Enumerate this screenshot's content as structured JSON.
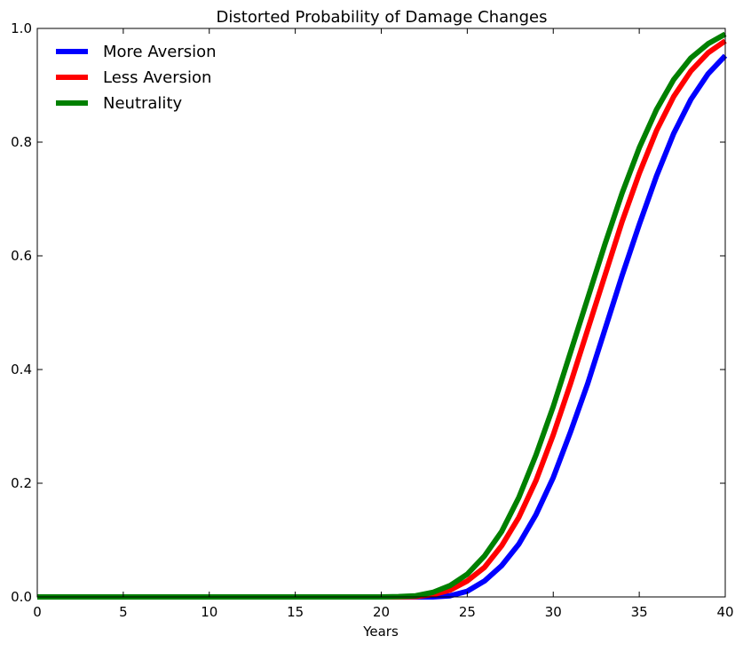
{
  "chart_data": {
    "type": "line",
    "title": "Distorted Probability of Damage Changes",
    "xlabel": "Years",
    "ylabel": "",
    "xlim": [
      0,
      40
    ],
    "ylim": [
      0,
      1.0
    ],
    "x_ticks": [
      0,
      5,
      10,
      15,
      20,
      25,
      30,
      35,
      40
    ],
    "x_tick_labels": [
      "0",
      "5",
      "10",
      "15",
      "20",
      "25",
      "30",
      "35",
      "40"
    ],
    "y_ticks": [
      0.0,
      0.2,
      0.4,
      0.6,
      0.8,
      1.0
    ],
    "y_tick_labels": [
      "0.0",
      "0.2",
      "0.4",
      "0.6",
      "0.8",
      "1.0"
    ],
    "grid": false,
    "legend_position": "top-left",
    "x": [
      0,
      2,
      4,
      6,
      8,
      10,
      12,
      14,
      16,
      18,
      19,
      20,
      21,
      22,
      23,
      24,
      25,
      26,
      27,
      28,
      29,
      30,
      31,
      32,
      33,
      34,
      35,
      36,
      37,
      38,
      39,
      40
    ],
    "series": [
      {
        "name": "More Aversion",
        "color": "#0000ff",
        "values": [
          0,
          0,
          0,
          0,
          0,
          0,
          0,
          0,
          0,
          0,
          0,
          0,
          0,
          0,
          0,
          0.002,
          0.01,
          0.028,
          0.055,
          0.093,
          0.145,
          0.21,
          0.29,
          0.375,
          0.47,
          0.565,
          0.655,
          0.74,
          0.815,
          0.875,
          0.92,
          0.952
        ]
      },
      {
        "name": "Less Aversion",
        "color": "#ff0000",
        "values": [
          0,
          0,
          0,
          0,
          0,
          0,
          0,
          0,
          0,
          0,
          0,
          0,
          0,
          0.0005,
          0.004,
          0.012,
          0.028,
          0.052,
          0.09,
          0.14,
          0.205,
          0.285,
          0.375,
          0.47,
          0.565,
          0.66,
          0.745,
          0.82,
          0.88,
          0.925,
          0.957,
          0.978
        ]
      },
      {
        "name": "Neutrality",
        "color": "#008000",
        "values": [
          0,
          0,
          0,
          0,
          0,
          0,
          0,
          0,
          0,
          0,
          0,
          0,
          0.0005,
          0.002,
          0.008,
          0.02,
          0.04,
          0.072,
          0.115,
          0.175,
          0.25,
          0.335,
          0.43,
          0.525,
          0.62,
          0.71,
          0.79,
          0.857,
          0.91,
          0.948,
          0.973,
          0.99
        ]
      }
    ]
  }
}
